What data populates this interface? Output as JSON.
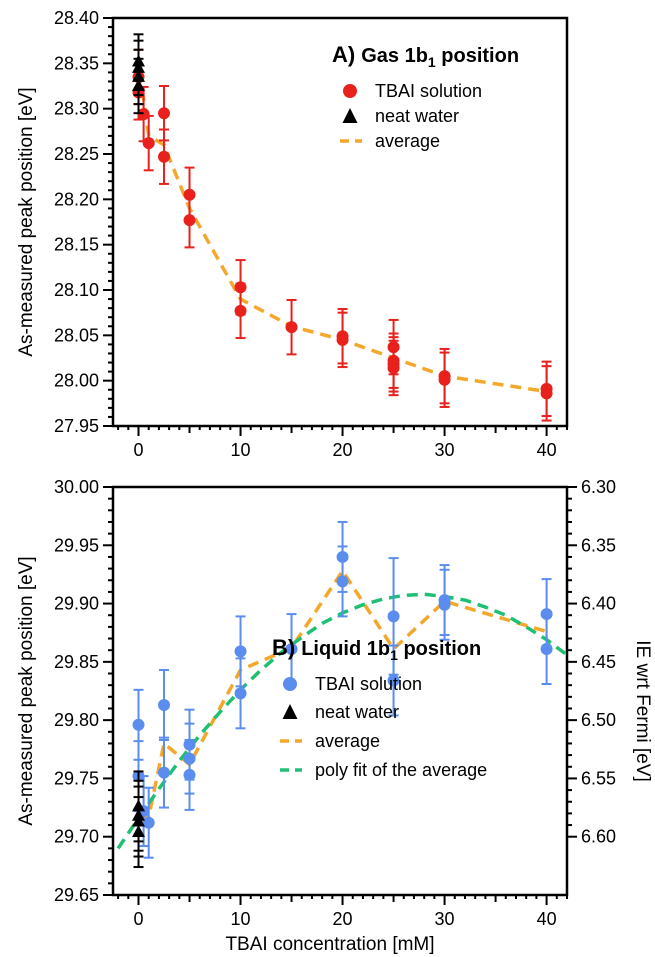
{
  "chart_data": [
    {
      "type": "scatter",
      "panel_id": "A)",
      "title_main": "Gas 1b",
      "title_sub": "1",
      "title_suffix": " position",
      "xlabel": "",
      "ylabel": "As-measured peak position [eV]",
      "xlim": [
        -2.5,
        42
      ],
      "ylim": [
        27.95,
        28.4
      ],
      "xticks": [
        0,
        10,
        20,
        30,
        40
      ],
      "yticks": [
        27.95,
        28.0,
        28.05,
        28.1,
        28.15,
        28.2,
        28.25,
        28.3,
        28.35,
        28.4
      ],
      "ytick_labels": [
        "27.95",
        "28.00",
        "28.05",
        "28.10",
        "28.15",
        "28.20",
        "28.25",
        "28.30",
        "28.35",
        "28.40"
      ],
      "legend_position": "top-right",
      "series": [
        {
          "name": "TBAI solution",
          "kind": "points",
          "marker": "circle",
          "color": "#e8211d",
          "x": [
            0,
            0,
            0.5,
            1,
            2.5,
            2.5,
            5,
            5,
            10,
            10,
            15,
            20,
            20,
            25,
            25,
            25,
            25,
            30,
            30,
            40,
            40
          ],
          "y": [
            28.335,
            28.318,
            28.294,
            28.262,
            28.295,
            28.247,
            28.205,
            28.177,
            28.103,
            28.077,
            28.059,
            28.049,
            28.045,
            28.037,
            28.022,
            28.018,
            28.014,
            28.005,
            28.001,
            27.991,
            27.986
          ],
          "err": [
            0.03,
            0.03,
            0.03,
            0.03,
            0.03,
            0.03,
            0.03,
            0.03,
            0.03,
            0.03,
            0.03,
            0.03,
            0.03,
            0.03,
            0.03,
            0.03,
            0.03,
            0.03,
            0.03,
            0.03,
            0.03
          ]
        },
        {
          "name": "neat water",
          "kind": "points",
          "marker": "triangle",
          "color": "#000000",
          "x": [
            0,
            0,
            0,
            0
          ],
          "y": [
            28.352,
            28.345,
            28.335,
            28.325
          ],
          "err": [
            0.03,
            0.03,
            0.03,
            0.03
          ]
        },
        {
          "name": "average",
          "kind": "dashed-line",
          "color": "#f3a82c",
          "x": [
            0,
            0.5,
            1,
            2.5,
            5,
            10,
            15,
            20,
            25,
            30,
            40
          ],
          "y": [
            28.34,
            28.31,
            28.27,
            28.26,
            28.19,
            28.09,
            28.06,
            28.045,
            28.025,
            28.005,
            27.988
          ]
        }
      ]
    },
    {
      "type": "scatter",
      "panel_id": "B)",
      "title_main": "Liquid 1b",
      "title_sub": "1",
      "title_suffix": " position",
      "xlabel": "TBAI concentration [mM]",
      "ylabel": "As-measured peak position [eV]",
      "y2label": "IE wrt Fermi [eV]",
      "xlim": [
        -2.5,
        42
      ],
      "ylim": [
        29.65,
        30.0
      ],
      "xticks": [
        0,
        10,
        20,
        30,
        40
      ],
      "yticks": [
        29.65,
        29.7,
        29.75,
        29.8,
        29.85,
        29.9,
        29.95,
        30.0
      ],
      "ytick_labels": [
        "29.65",
        "29.70",
        "29.75",
        "29.80",
        "29.85",
        "29.90",
        "29.95",
        "30.00"
      ],
      "y2_ticks": [
        6.3,
        6.35,
        6.4,
        6.45,
        6.5,
        6.55,
        6.6
      ],
      "y2_tick_labels": [
        "6.30",
        "6.35",
        "6.40",
        "6.45",
        "6.50",
        "6.55",
        "6.60"
      ],
      "y2_offset_sum": 36.3,
      "legend_position": "bottom-right",
      "series": [
        {
          "name": "TBAI solution",
          "kind": "points",
          "marker": "circle",
          "color": "#5b8def",
          "x": [
            0,
            0,
            0.5,
            1,
            2.5,
            2.5,
            5,
            5,
            5,
            10,
            10,
            15,
            20,
            20,
            25,
            25,
            30,
            30,
            40,
            40
          ],
          "y": [
            29.796,
            29.752,
            29.722,
            29.712,
            29.813,
            29.755,
            29.779,
            29.767,
            29.753,
            29.859,
            29.823,
            29.861,
            29.94,
            29.919,
            29.889,
            29.834,
            29.903,
            29.899,
            29.891,
            29.861
          ],
          "err": [
            0.03,
            0.03,
            0.03,
            0.03,
            0.03,
            0.03,
            0.03,
            0.03,
            0.03,
            0.03,
            0.03,
            0.03,
            0.03,
            0.03,
            0.05,
            0.03,
            0.03,
            0.03,
            0.03,
            0.03
          ]
        },
        {
          "name": "neat water",
          "kind": "points",
          "marker": "triangle",
          "color": "#000000",
          "x": [
            0,
            0,
            0,
            0
          ],
          "y": [
            29.726,
            29.718,
            29.713,
            29.704
          ],
          "err": [
            0.03,
            0.03,
            0.03,
            0.03
          ]
        },
        {
          "name": "average",
          "kind": "dashed-line",
          "color": "#f3a82c",
          "x": [
            0,
            1,
            2.5,
            5,
            10,
            15,
            20,
            25,
            30,
            40
          ],
          "y": [
            29.718,
            29.717,
            29.78,
            29.762,
            29.843,
            29.862,
            29.928,
            29.861,
            29.902,
            29.876
          ]
        },
        {
          "name": "poly fit of the average",
          "kind": "dashed-line",
          "color": "#1fc073",
          "x": [
            -2,
            0,
            2,
            4,
            6,
            8,
            10,
            12,
            14,
            16,
            18,
            20,
            22,
            24,
            26,
            28,
            30,
            32,
            34,
            36,
            38,
            40,
            42
          ],
          "y": [
            29.69,
            29.716,
            29.741,
            29.765,
            29.787,
            29.807,
            29.826,
            29.843,
            29.858,
            29.871,
            29.883,
            29.892,
            29.899,
            29.904,
            29.907,
            29.908,
            29.906,
            29.903,
            29.897,
            29.89,
            29.88,
            29.869,
            29.856
          ]
        }
      ]
    }
  ]
}
